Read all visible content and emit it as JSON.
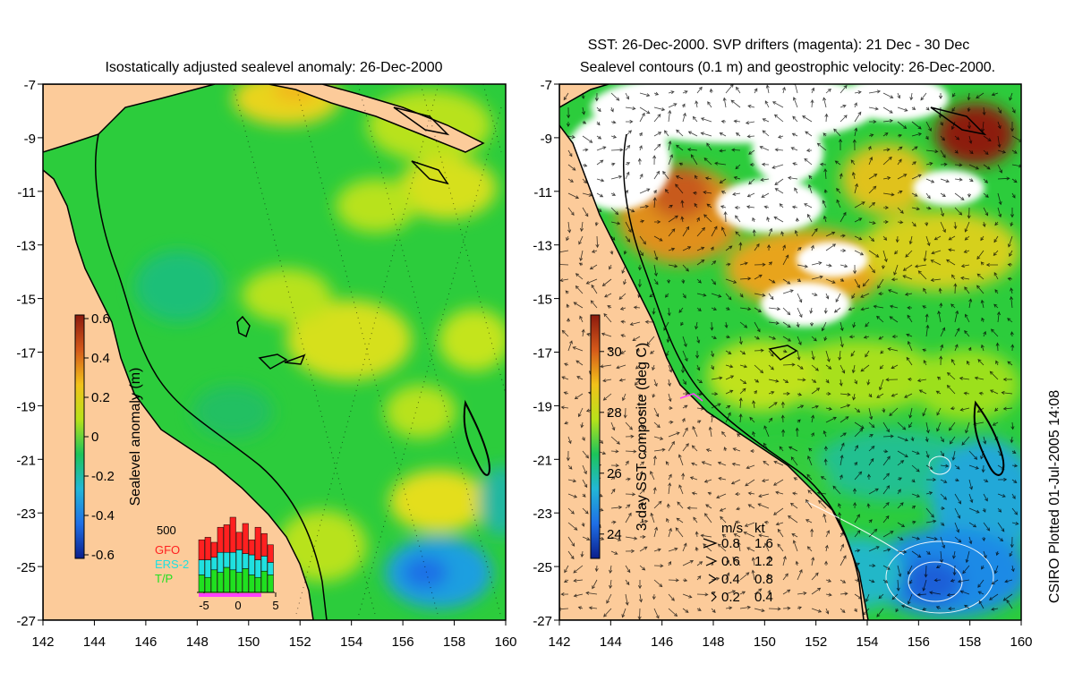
{
  "left_panel": {
    "title": "Isostatically adjusted sealevel anomaly: 26-Dec-2000",
    "colorbar": {
      "label": "Sealevel anomaly (m)",
      "ticks": [
        "0.6",
        "0.4",
        "0.2",
        "0",
        "-0.2",
        "-0.4",
        "-0.6"
      ],
      "colors": [
        "#0b1f8c",
        "#1f6fe6",
        "#22b7d6",
        "#1cc45a",
        "#b8e21a",
        "#f2c21a",
        "#d4591a",
        "#8c1a0e"
      ]
    },
    "histogram": {
      "ymax_label": "500",
      "x_ticks": [
        "-5",
        "0",
        "5"
      ],
      "legend": [
        {
          "name": "GFO",
          "color": "#ff2020"
        },
        {
          "name": "ERS-2",
          "color": "#20e0e0"
        },
        {
          "name": "T/P",
          "color": "#20e020"
        }
      ],
      "bars_tp": [
        70,
        60,
        90,
        80,
        100,
        90,
        80,
        95,
        70,
        60,
        85,
        70
      ],
      "bars_ers": [
        60,
        70,
        50,
        80,
        60,
        70,
        90,
        60,
        80,
        70,
        60,
        50
      ],
      "bars_gfo": [
        80,
        90,
        60,
        100,
        110,
        140,
        70,
        120,
        60,
        130,
        90,
        70
      ]
    }
  },
  "right_panel": {
    "title_line1": "SST: 26-Dec-2000. SVP drifters (magenta): 21 Dec - 30 Dec",
    "title_line2": "Sealevel contours (0.1 m) and geostrophic velocity: 26-Dec-2000.",
    "colorbar": {
      "label": "3-day SST composite (deg C)",
      "ticks": [
        "30",
        "28",
        "26",
        "24"
      ],
      "colors": [
        "#0b1f8c",
        "#1f6fe6",
        "#22b7d6",
        "#1cc45a",
        "#b8e21a",
        "#f2c21a",
        "#d4591a",
        "#8c1a0e"
      ]
    },
    "velocity_legend": {
      "header_ms": "m/s",
      "header_kt": "kt",
      "rows": [
        {
          "ms": "0.8",
          "kt": "1.6"
        },
        {
          "ms": "0.6",
          "kt": "1.2"
        },
        {
          "ms": "0.4",
          "kt": "0.8"
        },
        {
          "ms": "0.2",
          "kt": "0.4"
        }
      ]
    }
  },
  "axes": {
    "lat_ticks": [
      "-7",
      "-9",
      "-11",
      "-13",
      "-15",
      "-17",
      "-19",
      "-21",
      "-23",
      "-25",
      "-27"
    ],
    "lon_ticks": [
      "142",
      "144",
      "146",
      "148",
      "150",
      "152",
      "154",
      "156",
      "158",
      "160"
    ],
    "lat_range": [
      -27,
      -7
    ],
    "lon_range": [
      142,
      160
    ]
  },
  "credit": "CSIRO Plotted 01-Jul-2005 14:08",
  "colors": {
    "land": "#fccb9a",
    "sea_base": "#2ccc3c",
    "cloud": "#ffffff"
  }
}
